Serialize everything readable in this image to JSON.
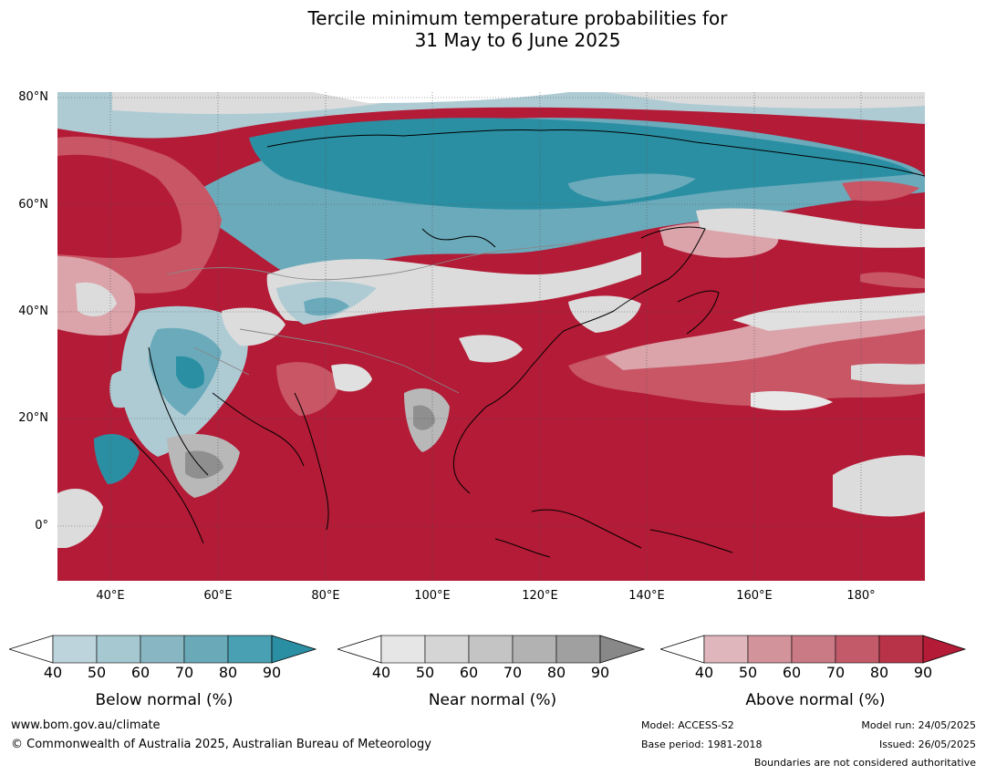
{
  "title": {
    "line1": "Tercile minimum temperature probabilities for",
    "line2": "31 May to 6 June 2025"
  },
  "map": {
    "lat_labels": [
      "80°N",
      "60°N",
      "40°N",
      "20°N",
      "0°"
    ],
    "lon_labels": [
      "40°E",
      "60°E",
      "80°E",
      "100°E",
      "120°E",
      "140°E",
      "160°E",
      "180°"
    ],
    "colors": {
      "above_strong": "#b31b36",
      "above_mid": "#c95665",
      "above_light": "#dba3aa",
      "below_strong": "#2b8fa3",
      "below_mid": "#6aaabb",
      "below_light": "#aecbd4",
      "near_light": "#dcdcdc",
      "near_mid": "#b8b8b8",
      "near_strong": "#8f8f8f",
      "coast": "#000000",
      "border": "#888888"
    }
  },
  "colorbars": [
    {
      "label": "Below normal (%)",
      "ticks": [
        "40",
        "50",
        "60",
        "70",
        "80",
        "90"
      ],
      "colors": [
        "#bed4dc",
        "#a6c8d0",
        "#88b6c2",
        "#6aaab8",
        "#48a0b2",
        "#2b8fa3"
      ]
    },
    {
      "label": "Near normal (%)",
      "ticks": [
        "40",
        "50",
        "60",
        "70",
        "80",
        "90"
      ],
      "colors": [
        "#e6e6e6",
        "#d5d5d5",
        "#c4c4c4",
        "#b2b2b2",
        "#a0a0a0",
        "#888888"
      ]
    },
    {
      "label": "Above normal (%)",
      "ticks": [
        "40",
        "50",
        "60",
        "70",
        "80",
        "90"
      ],
      "colors": [
        "#dfb6bc",
        "#d3939a",
        "#c97a85",
        "#c25a6a",
        "#b93348",
        "#b31b36"
      ]
    }
  ],
  "footer": {
    "website": "www.bom.gov.au/climate",
    "copyright": "© Commonwealth of Australia 2025, Australian Bureau of Meteorology",
    "model": "Model: ACCESS-S2",
    "base_period": "Base period: 1981-2018",
    "model_run": "Model run: 24/05/2025",
    "issued": "Issued: 26/05/2025",
    "disclaimer": "Boundaries are not considered authoritative"
  }
}
